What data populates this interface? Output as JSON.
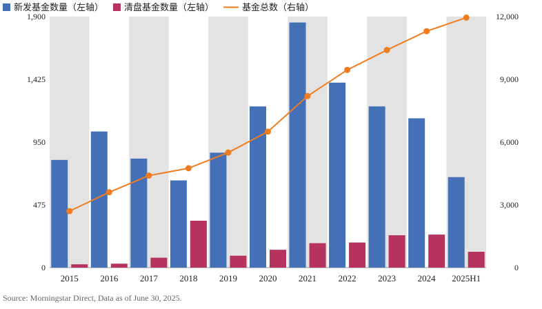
{
  "chart_data": {
    "type": "bar",
    "categories": [
      "2015",
      "2016",
      "2017",
      "2018",
      "2019",
      "2020",
      "2021",
      "2022",
      "2023",
      "2024",
      "2025H1"
    ],
    "series": [
      {
        "name": "新发基金数量（左轴）",
        "kind": "bar",
        "axis": "left",
        "color": "#4470B8",
        "values": [
          815,
          1030,
          825,
          660,
          870,
          1220,
          1855,
          1400,
          1220,
          1130,
          685
        ]
      },
      {
        "name": "清盘基金数量（左轴）",
        "kind": "bar",
        "axis": "left",
        "color": "#B5335E",
        "values": [
          25,
          30,
          75,
          355,
          90,
          135,
          185,
          190,
          245,
          250,
          120
        ]
      },
      {
        "name": "基金总数（右轴）",
        "kind": "line",
        "axis": "right",
        "color": "#F07C20",
        "values": [
          2700,
          3600,
          4400,
          4750,
          5500,
          6500,
          8200,
          9450,
          10400,
          11300,
          11950
        ]
      }
    ],
    "y_left": {
      "lim": [
        0,
        1900
      ],
      "ticks": [
        0,
        475,
        950,
        1425,
        1900
      ],
      "tick_labels": [
        "0",
        "475",
        "950",
        "1,425",
        "1,900"
      ]
    },
    "y_right": {
      "lim": [
        0,
        12000
      ],
      "ticks": [
        0,
        3000,
        6000,
        9000,
        12000
      ],
      "tick_labels": [
        "0",
        "3,000",
        "6,000",
        "9,000",
        "12,000"
      ]
    },
    "legend_position": "top-left",
    "column_shading": true
  },
  "source_text": "Source: Morningstar Direct, Data as of June 30, 2025."
}
